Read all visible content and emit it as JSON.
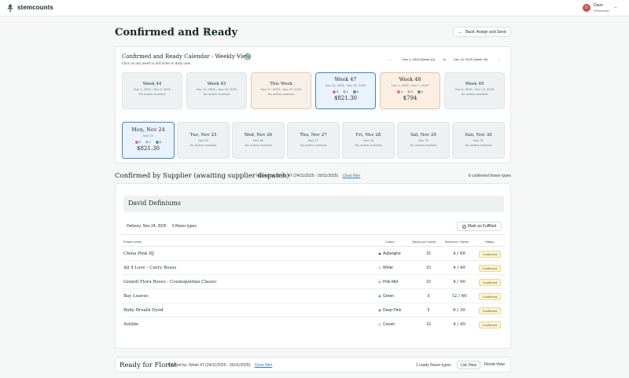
{
  "app": {
    "brand": "stemcounts"
  },
  "user": {
    "initial": "D",
    "name": "Dave",
    "role": "Wholesaler"
  },
  "page": {
    "title": "Confirmed and Ready",
    "back_label": "Back: Assign and Send"
  },
  "calendar": {
    "title": "Confirmed and Ready Calendar - Weekly View",
    "subtitle": "Click on any week to drill down to daily view",
    "range_from": "Nov 3, 2025 (Week 44)",
    "range_to_word": "to",
    "range_to": "Dec 14, 2025 (Week 49)",
    "weeks": [
      {
        "name": "Week 44",
        "dates": "Nov 3, 2025 - Nov 9, 2025",
        "none": "No orders received"
      },
      {
        "name": "Week 45",
        "dates": "Nov 10, 2025 - Nov 16, 2025",
        "none": "No orders received"
      },
      {
        "name": "This Week",
        "dates": "Nov 17, 2025 - Nov 23, 2025",
        "none": "No orders received"
      },
      {
        "name": "Week 47",
        "dates": "Nov 24, 2025 - Nov 30, 2025",
        "s1": "0",
        "s2": "1",
        "s3": "0",
        "amount": "$821.30"
      },
      {
        "name": "Week 48",
        "dates": "Dec 1, 2025 - Dec 7, 2025",
        "s1": "1",
        "s2": "0",
        "s3": "0",
        "amount": "$794"
      },
      {
        "name": "Week 49",
        "dates": "Dec 8, 2025 - Dec 14, 2025",
        "none": "No orders received"
      }
    ],
    "days": [
      {
        "name": "Mon, Nov 24",
        "date": "Nov 24",
        "s1": "0",
        "s2": "1",
        "s3": "0",
        "amount": "$821.30"
      },
      {
        "name": "Tue, Nov 25",
        "date": "Nov 25",
        "none": "No orders received"
      },
      {
        "name": "Wed, Nov 26",
        "date": "Nov 26",
        "none": "No orders received"
      },
      {
        "name": "Thu, Nov 27",
        "date": "Nov 27",
        "none": "No orders received"
      },
      {
        "name": "Fri, Nov 28",
        "date": "Nov 28",
        "none": "No orders received"
      },
      {
        "name": "Sat, Nov 29",
        "date": "Nov 29",
        "none": "No orders received"
      },
      {
        "name": "Sun, Nov 30",
        "date": "Nov 30",
        "none": "No orders received"
      }
    ]
  },
  "supplier_section": {
    "title": "Confirmed by Supplier (awaiting supplier dispatch)",
    "filter": "Filtered by: Week 47 (24/11/2025 - 30/11/2025)",
    "clear": "Clear filter",
    "count": "6 confirmed flower types",
    "supplier_name": "David Definiums",
    "delivery": "Delivery: Nov 24, 2025",
    "types": "6 flower types",
    "mark_label": "Mark as Fulfilled",
    "headers": {
      "flower": "Flower name",
      "colour": "Colour",
      "stems": "Stems per bunch",
      "bunches": "Bunches / Stems",
      "status": "Status"
    },
    "rows": [
      {
        "name": "China Pink DJ",
        "colour": "Aubergine",
        "color_hex": "#3a2440",
        "stems": "15",
        "bunches": "4 / 60",
        "status": "Confirmed"
      },
      {
        "name": "All 4 Love - Curry Roses",
        "colour": "White",
        "color_hex": "#ffffff",
        "stems": "10",
        "bunches": "4 / 40",
        "status": "Confirmed"
      },
      {
        "name": "Grandi Flora Roses - Cosmopolitan Classic",
        "colour": "Pink Mid",
        "color_hex": "#e9a7c4",
        "stems": "10",
        "bunches": "4 / 40",
        "status": "Confirmed"
      },
      {
        "name": "Bay Leaves",
        "colour": "Green",
        "color_hex": "#3a9b45",
        "stems": "5",
        "bunches": "12 / 60",
        "status": "Confirmed"
      },
      {
        "name": "Baby Breath Dyed",
        "colour": "Deep Pink",
        "color_hex": "#cc3a78",
        "stems": "5",
        "bunches": "6 / 30",
        "status": "Confirmed"
      },
      {
        "name": "Astilbe",
        "colour": "Cream",
        "color_hex": "#f3ebcf",
        "stems": "10",
        "bunches": "4 / 40",
        "status": "Confirmed"
      }
    ]
  },
  "florist_section": {
    "title": "Ready for Florist",
    "filter": "Filtered by: Week 47 (24/11/2025 - 30/11/2025)",
    "clear": "Clear filter",
    "count": "2 ready flower types",
    "list_view": "List View",
    "florist_view": "Florist View"
  },
  "colors": {
    "accent": "#3d87c7",
    "teal": "#2f8a8a",
    "orange": "#e8a26b"
  }
}
